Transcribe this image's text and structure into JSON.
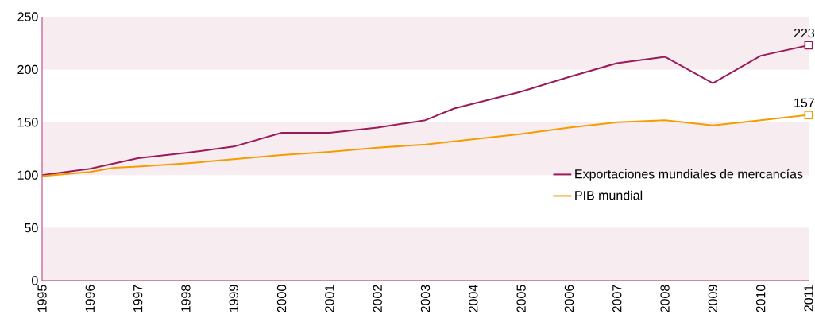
{
  "chart_data": {
    "type": "line",
    "xlim": [
      1995,
      2011
    ],
    "ylim": [
      0,
      250
    ],
    "xticks": [
      1995,
      1996,
      1997,
      1998,
      1999,
      2000,
      2001,
      2002,
      2003,
      2004,
      2005,
      2006,
      2007,
      2008,
      2009,
      2010,
      2011
    ],
    "yticks": [
      0,
      50,
      100,
      150,
      200,
      250
    ],
    "series": [
      {
        "name": "Exportaciones mundiales de mercancías",
        "color": "#9b1b5a",
        "x": [
          1995,
          1996,
          1997,
          1998,
          1999,
          2000,
          2001,
          2002,
          2003,
          2003.6,
          2005,
          2006,
          2007,
          2008,
          2009,
          2010,
          2011
        ],
        "values": [
          100,
          106,
          116,
          121,
          127,
          140,
          140,
          145,
          152,
          163,
          179,
          193,
          206,
          212,
          187,
          213,
          223
        ]
      },
      {
        "name": "PIB mundial",
        "color": "#f59c00",
        "x": [
          1995,
          1996,
          1996.5,
          1997,
          1998,
          1999,
          2000,
          2001,
          2002,
          2003,
          2004,
          2005,
          2006,
          2007,
          2008,
          2009,
          2010,
          2011
        ],
        "values": [
          99,
          103,
          107,
          108,
          111,
          115,
          119,
          122,
          126,
          129,
          134,
          139,
          145,
          150,
          152,
          147,
          152,
          157
        ]
      }
    ],
    "bands": [
      {
        "axis": "y",
        "from": 0,
        "to": 50,
        "color": "#f7ecf0"
      },
      {
        "axis": "y",
        "from": 100,
        "to": 150,
        "color": "#f7ecf0"
      },
      {
        "axis": "y",
        "from": 200,
        "to": 250,
        "color": "#f7ecf0"
      }
    ],
    "annotations": [
      {
        "text": "223",
        "x": 2011,
        "y": 223
      },
      {
        "text": "157",
        "x": 2011,
        "y": 157
      }
    ],
    "legend": "right",
    "grid": false,
    "marker": "none",
    "line_style": "solid"
  }
}
